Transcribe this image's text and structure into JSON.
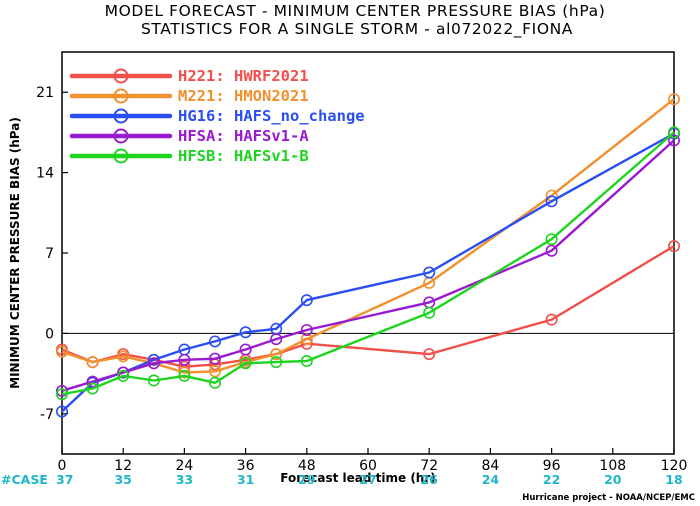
{
  "chart_data": {
    "type": "line",
    "title": "MODEL FORECAST - MINIMUM CENTER PRESSURE BIAS (hPa)",
    "subtitle": "STATISTICS FOR A SINGLE STORM - al072022_FIONA",
    "xlabel": "Forecast lead time (hr)",
    "ylabel": "MINIMUM CENTER PRESSURE BIAS (hPa)",
    "xlim": [
      0,
      120
    ],
    "ylim": [
      -10.5,
      24.5
    ],
    "xticks": [
      0,
      12,
      24,
      36,
      48,
      60,
      72,
      84,
      96,
      108,
      120
    ],
    "yticks": [
      -7,
      0,
      7,
      14,
      21
    ],
    "case_label": "#CASE",
    "case_counts": [
      {
        "x": 0,
        "n": "37"
      },
      {
        "x": 12,
        "n": "35"
      },
      {
        "x": 24,
        "n": "33"
      },
      {
        "x": 36,
        "n": "31"
      },
      {
        "x": 48,
        "n": "29"
      },
      {
        "x": 60,
        "n": "27"
      },
      {
        "x": 72,
        "n": "26"
      },
      {
        "x": 84,
        "n": "24"
      },
      {
        "x": 96,
        "n": "22"
      },
      {
        "x": 108,
        "n": "20"
      },
      {
        "x": 120,
        "n": "18"
      }
    ],
    "credit": "Hurricane project - NOAA/NCEP/EMC",
    "legend_position": "top-left",
    "grid": false,
    "series": [
      {
        "name": "H221: HWRF2021",
        "color": "#f0504a",
        "points": [
          [
            0,
            -1.4
          ],
          [
            6,
            -2.5
          ],
          [
            12,
            -1.8
          ],
          [
            18,
            -2.3
          ],
          [
            24,
            -2.9
          ],
          [
            30,
            -2.7
          ],
          [
            36,
            -2.3
          ],
          [
            42,
            -1.8
          ],
          [
            48,
            -0.9
          ],
          [
            72,
            -1.8
          ],
          [
            96,
            1.2
          ],
          [
            120,
            7.6
          ]
        ]
      },
      {
        "name": "M221: HMON2021",
        "color": "#f0902e",
        "points": [
          [
            0,
            -1.6
          ],
          [
            6,
            -2.5
          ],
          [
            12,
            -2.0
          ],
          [
            18,
            -2.6
          ],
          [
            24,
            -3.4
          ],
          [
            30,
            -3.3
          ],
          [
            36,
            -2.5
          ],
          [
            42,
            -1.8
          ],
          [
            48,
            -0.5
          ],
          [
            72,
            4.4
          ],
          [
            96,
            12.0
          ],
          [
            120,
            20.4
          ]
        ]
      },
      {
        "name": "HG16: HAFS_no_change",
        "color": "#2a4ff0",
        "points": [
          [
            0,
            -6.8
          ],
          [
            6,
            -4.3
          ],
          [
            12,
            -3.4
          ],
          [
            18,
            -2.3
          ],
          [
            24,
            -1.4
          ],
          [
            30,
            -0.7
          ],
          [
            36,
            0.1
          ],
          [
            42,
            0.4
          ],
          [
            48,
            2.9
          ],
          [
            72,
            5.3
          ],
          [
            96,
            11.5
          ],
          [
            120,
            17.4
          ]
        ]
      },
      {
        "name": "HFSA: HAFSv1-A",
        "color": "#9a1ad0",
        "points": [
          [
            0,
            -5.0
          ],
          [
            6,
            -4.2
          ],
          [
            12,
            -3.4
          ],
          [
            18,
            -2.6
          ],
          [
            24,
            -2.3
          ],
          [
            30,
            -2.2
          ],
          [
            36,
            -1.4
          ],
          [
            42,
            -0.5
          ],
          [
            48,
            0.3
          ],
          [
            72,
            2.7
          ],
          [
            96,
            7.2
          ],
          [
            120,
            16.8
          ]
        ]
      },
      {
        "name": "HFSB: HAFSv1-B",
        "color": "#1fd41f",
        "points": [
          [
            0,
            -5.3
          ],
          [
            6,
            -4.8
          ],
          [
            12,
            -3.7
          ],
          [
            18,
            -4.1
          ],
          [
            24,
            -3.7
          ],
          [
            30,
            -4.3
          ],
          [
            36,
            -2.6
          ],
          [
            42,
            -2.5
          ],
          [
            48,
            -2.4
          ],
          [
            72,
            1.8
          ],
          [
            96,
            8.2
          ],
          [
            120,
            17.5
          ]
        ]
      }
    ]
  }
}
